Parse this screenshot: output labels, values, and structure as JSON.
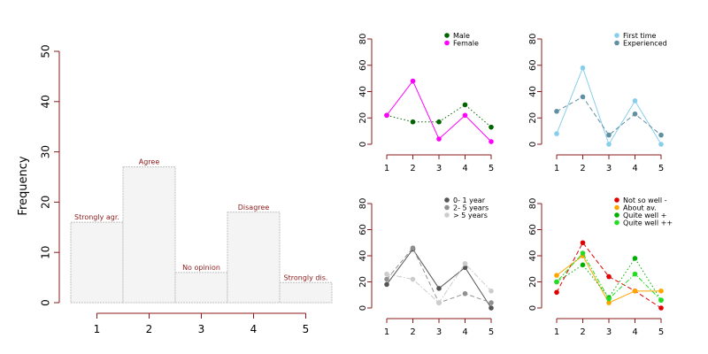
{
  "chart_data": [
    {
      "type": "bar",
      "ylabel": "Frequency",
      "x": [
        1,
        2,
        3,
        4,
        5
      ],
      "xticks": [
        "1",
        "2",
        "3",
        "4",
        "5"
      ],
      "yticks": [
        "0",
        "10",
        "20",
        "30",
        "40",
        "50"
      ],
      "ylim": [
        0,
        50
      ],
      "categories": [
        "Strongly agr.",
        "Agree",
        "No opinion",
        "Disagree",
        "Strongly dis."
      ],
      "values": [
        16,
        27,
        6,
        18,
        4
      ],
      "bar_fill": "#f4f4f4",
      "bar_border": "#bfbfbf",
      "label_color": "#8b1a1a",
      "axis_color": "#8b1a1a"
    },
    {
      "type": "line",
      "x": [
        1,
        2,
        3,
        4,
        5
      ],
      "xticks": [
        "1",
        "2",
        "3",
        "4",
        "5"
      ],
      "yticks": [
        "0",
        "20",
        "40",
        "60",
        "80"
      ],
      "ylim": [
        0,
        80
      ],
      "legend": "top-right",
      "series": [
        {
          "name": "Male",
          "values": [
            22,
            17,
            17,
            30,
            13
          ],
          "color": "#006400",
          "dash": "dotted"
        },
        {
          "name": "Female",
          "values": [
            22,
            48,
            4,
            22,
            2
          ],
          "color": "#ff00ff",
          "dash": "solid"
        }
      ]
    },
    {
      "type": "line",
      "x": [
        1,
        2,
        3,
        4,
        5
      ],
      "xticks": [
        "1",
        "2",
        "3",
        "4",
        "5"
      ],
      "yticks": [
        "0",
        "20",
        "40",
        "60",
        "80"
      ],
      "ylim": [
        0,
        80
      ],
      "legend": "top-right",
      "series": [
        {
          "name": "First time",
          "values": [
            8,
            58,
            0,
            33,
            0
          ],
          "color": "#87ceeb",
          "dash": "solid"
        },
        {
          "name": "Experienced",
          "values": [
            25,
            36,
            7,
            23,
            7
          ],
          "color": "#5f8fa0",
          "dash": "dashed"
        }
      ]
    },
    {
      "type": "line",
      "x": [
        1,
        2,
        3,
        4,
        5
      ],
      "xticks": [
        "1",
        "2",
        "3",
        "4",
        "5"
      ],
      "yticks": [
        "0",
        "20",
        "40",
        "60",
        "80"
      ],
      "ylim": [
        0,
        80
      ],
      "legend": "top-right",
      "series": [
        {
          "name": "0- 1 year",
          "values": [
            18,
            45,
            15,
            31,
            0
          ],
          "color": "#555555",
          "dash": "solid"
        },
        {
          "name": "2- 5 years",
          "values": [
            22,
            46,
            4,
            11,
            4
          ],
          "color": "#909090",
          "dash": "dashed"
        },
        {
          "name": "> 5 years",
          "values": [
            26,
            22,
            4,
            34,
            13
          ],
          "color": "#cccccc",
          "dash": "dashdot"
        }
      ]
    },
    {
      "type": "line",
      "x": [
        1,
        2,
        3,
        4,
        5
      ],
      "xticks": [
        "1",
        "2",
        "3",
        "4",
        "5"
      ],
      "yticks": [
        "0",
        "20",
        "40",
        "60",
        "80"
      ],
      "ylim": [
        0,
        80
      ],
      "legend": "top-right",
      "series": [
        {
          "name": "Not so well -",
          "values": [
            12,
            50,
            24,
            13,
            0
          ],
          "color": "#e00000",
          "dash": "dashed"
        },
        {
          "name": "About av.",
          "values": [
            25,
            40,
            4,
            13,
            13
          ],
          "color": "#ffa500",
          "dash": "solid"
        },
        {
          "name": "Quite well +",
          "values": [
            20,
            33,
            8,
            38,
            6
          ],
          "color": "#00b000",
          "dash": "dotted"
        },
        {
          "name": "Quite well ++",
          "values": [
            20,
            42,
            7,
            26,
            6
          ],
          "color": "#22dd22",
          "dash": "dotdash"
        }
      ]
    }
  ]
}
